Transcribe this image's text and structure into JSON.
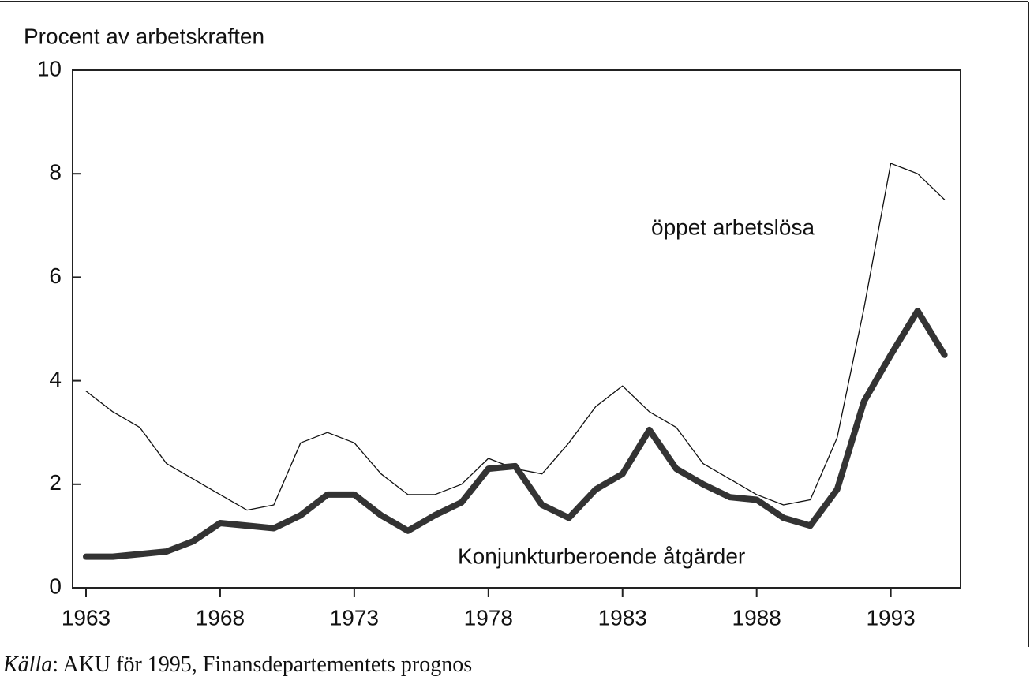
{
  "chart_data": {
    "type": "line",
    "y_label": "Procent av arbetskraften",
    "source_label": "Källa",
    "source_text": ": AKU för 1995, Finansdepartementets prognos",
    "x": [
      1963,
      1964,
      1965,
      1966,
      1967,
      1968,
      1969,
      1970,
      1971,
      1972,
      1973,
      1974,
      1975,
      1976,
      1977,
      1978,
      1979,
      1980,
      1981,
      1982,
      1983,
      1984,
      1985,
      1986,
      1987,
      1988,
      1989,
      1990,
      1991,
      1992,
      1993,
      1994,
      1995
    ],
    "series": [
      {
        "name": "öppet arbetslösa",
        "color": "#111111",
        "width": 1.3,
        "values": [
          3.8,
          3.4,
          3.1,
          2.4,
          2.1,
          1.8,
          1.5,
          1.6,
          2.8,
          3.0,
          2.8,
          2.2,
          1.8,
          1.8,
          2.0,
          2.5,
          2.3,
          2.2,
          2.8,
          3.5,
          3.9,
          3.4,
          3.1,
          2.4,
          2.1,
          1.8,
          1.6,
          1.7,
          2.9,
          5.4,
          8.2,
          8.0,
          7.5
        ]
      },
      {
        "name": "Konjunkturberoende åtgärder",
        "color": "#333333",
        "width": 8,
        "values": [
          0.6,
          0.6,
          0.65,
          0.7,
          0.9,
          1.25,
          1.2,
          1.15,
          1.4,
          1.8,
          1.8,
          1.4,
          1.1,
          1.4,
          1.65,
          2.3,
          2.35,
          1.6,
          1.35,
          1.9,
          2.2,
          3.05,
          2.3,
          2.0,
          1.75,
          1.7,
          1.35,
          1.2,
          1.9,
          3.6,
          4.5,
          5.35,
          4.5
        ]
      }
    ],
    "xlim": [
      1962.5,
      1995.6
    ],
    "xticks": [
      1963,
      1968,
      1973,
      1978,
      1983,
      1988,
      1993
    ],
    "ylim": [
      0,
      10
    ],
    "yticks": [
      0,
      2,
      4,
      6,
      8,
      10
    ]
  }
}
